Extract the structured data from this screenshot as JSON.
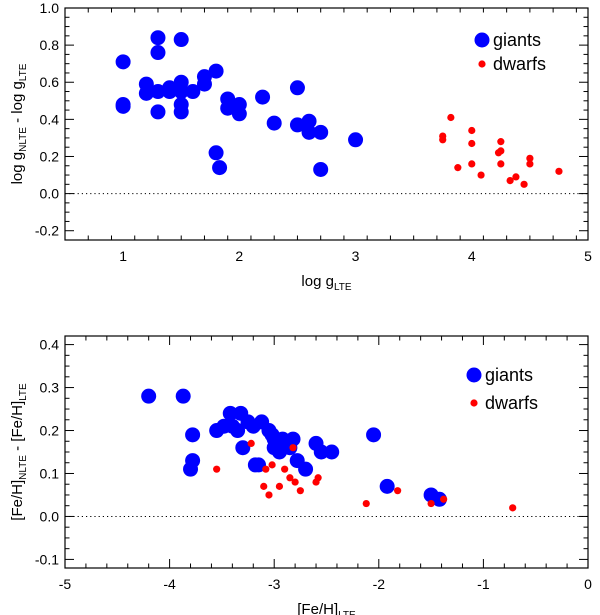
{
  "colors": {
    "giants": "#0000ff",
    "dwarfs": "#ff0000",
    "axis": "#000000"
  },
  "chart_data": [
    {
      "type": "scatter",
      "xlabel": "log g",
      "xlabel_sub": "LTE",
      "ylabel_parts": [
        "log g",
        "NLTE",
        " - log g",
        "LTE"
      ],
      "xlim": [
        0.5,
        5
      ],
      "ylim": [
        -0.25,
        1.0
      ],
      "xticks": [
        1,
        2,
        3,
        4,
        5
      ],
      "xtick_labels": [
        "1",
        "2",
        "3",
        "4",
        "5"
      ],
      "yticks": [
        -0.2,
        0.0,
        0.2,
        0.4,
        0.6,
        0.8,
        1.0
      ],
      "ytick_labels": [
        "-0.2",
        "0.0",
        "0.2",
        "0.4",
        "0.6",
        "0.8",
        "1.0"
      ],
      "zero_line": true,
      "legend": "top-right",
      "series": [
        {
          "name": "giants",
          "marker": "large-circle",
          "points": [
            [
              1.0,
              0.71
            ],
            [
              1.0,
              0.48
            ],
            [
              1.0,
              0.47
            ],
            [
              1.2,
              0.59
            ],
            [
              1.2,
              0.54
            ],
            [
              1.3,
              0.84
            ],
            [
              1.3,
              0.76
            ],
            [
              1.3,
              0.55
            ],
            [
              1.3,
              0.44
            ],
            [
              1.4,
              0.57
            ],
            [
              1.4,
              0.55
            ],
            [
              1.5,
              0.83
            ],
            [
              1.5,
              0.6
            ],
            [
              1.5,
              0.55
            ],
            [
              1.5,
              0.48
            ],
            [
              1.5,
              0.44
            ],
            [
              1.6,
              0.55
            ],
            [
              1.7,
              0.63
            ],
            [
              1.7,
              0.59
            ],
            [
              1.8,
              0.66
            ],
            [
              1.8,
              0.22
            ],
            [
              1.83,
              0.14
            ],
            [
              1.9,
              0.51
            ],
            [
              1.9,
              0.46
            ],
            [
              2.0,
              0.48
            ],
            [
              2.0,
              0.43
            ],
            [
              2.2,
              0.52
            ],
            [
              2.3,
              0.38
            ],
            [
              2.5,
              0.57
            ],
            [
              2.5,
              0.37
            ],
            [
              2.6,
              0.39
            ],
            [
              2.6,
              0.33
            ],
            [
              2.7,
              0.33
            ],
            [
              2.7,
              0.13
            ],
            [
              3.0,
              0.29
            ]
          ]
        },
        {
          "name": "dwarfs",
          "marker": "small-circle",
          "points": [
            [
              3.75,
              0.31
            ],
            [
              3.75,
              0.29
            ],
            [
              3.82,
              0.41
            ],
            [
              3.88,
              0.14
            ],
            [
              4.0,
              0.34
            ],
            [
              4.0,
              0.27
            ],
            [
              4.0,
              0.16
            ],
            [
              4.08,
              0.1
            ],
            [
              4.23,
              0.22
            ],
            [
              4.25,
              0.28
            ],
            [
              4.25,
              0.23
            ],
            [
              4.25,
              0.16
            ],
            [
              4.33,
              0.07
            ],
            [
              4.38,
              0.09
            ],
            [
              4.45,
              0.05
            ],
            [
              4.5,
              0.19
            ],
            [
              4.5,
              0.16
            ],
            [
              4.75,
              0.12
            ]
          ]
        }
      ]
    },
    {
      "type": "scatter",
      "xlabel": "[Fe/H]",
      "xlabel_sub": "LTE",
      "ylabel_parts": [
        "[Fe/H]",
        "NLTE",
        " - [Fe/H]",
        "LTE"
      ],
      "xlim": [
        -5,
        0
      ],
      "ylim": [
        -0.12,
        0.42
      ],
      "xticks": [
        -5,
        -4,
        -3,
        -2,
        -1,
        0
      ],
      "xtick_labels": [
        "-5",
        "-4",
        "-3",
        "-2",
        "-1",
        "0"
      ],
      "yticks": [
        -0.1,
        0.0,
        0.1,
        0.2,
        0.3,
        0.4
      ],
      "ytick_labels": [
        "-0.1",
        "0.0",
        "0.1",
        "0.2",
        "0.3",
        "0.4"
      ],
      "zero_line": true,
      "legend": "top-right",
      "series": [
        {
          "name": "giants",
          "marker": "large-circle",
          "points": [
            [
              -4.2,
              0.28
            ],
            [
              -3.87,
              0.28
            ],
            [
              -3.8,
              0.11
            ],
            [
              -3.78,
              0.19
            ],
            [
              -3.78,
              0.13
            ],
            [
              -3.55,
              0.2
            ],
            [
              -3.48,
              0.21
            ],
            [
              -3.42,
              0.24
            ],
            [
              -3.4,
              0.21
            ],
            [
              -3.35,
              0.2
            ],
            [
              -3.32,
              0.24
            ],
            [
              -3.3,
              0.16
            ],
            [
              -3.25,
              0.22
            ],
            [
              -3.2,
              0.21
            ],
            [
              -3.18,
              0.12
            ],
            [
              -3.15,
              0.12
            ],
            [
              -3.12,
              0.22
            ],
            [
              -3.05,
              0.2
            ],
            [
              -3.02,
              0.19
            ],
            [
              -3.0,
              0.18
            ],
            [
              -3.0,
              0.16
            ],
            [
              -2.98,
              0.17
            ],
            [
              -2.95,
              0.15
            ],
            [
              -2.92,
              0.18
            ],
            [
              -2.88,
              0.17
            ],
            [
              -2.85,
              0.16
            ],
            [
              -2.82,
              0.18
            ],
            [
              -2.78,
              0.13
            ],
            [
              -2.7,
              0.11
            ],
            [
              -2.6,
              0.17
            ],
            [
              -2.55,
              0.15
            ],
            [
              -2.45,
              0.15
            ],
            [
              -2.05,
              0.19
            ],
            [
              -1.92,
              0.07
            ],
            [
              -1.5,
              0.05
            ],
            [
              -1.42,
              0.04
            ]
          ]
        },
        {
          "name": "dwarfs",
          "marker": "small-circle",
          "points": [
            [
              -3.55,
              0.11
            ],
            [
              -3.22,
              0.17
            ],
            [
              -3.1,
              0.07
            ],
            [
              -3.08,
              0.11
            ],
            [
              -3.05,
              0.05
            ],
            [
              -3.02,
              0.12
            ],
            [
              -2.95,
              0.07
            ],
            [
              -2.9,
              0.11
            ],
            [
              -2.85,
              0.09
            ],
            [
              -2.82,
              0.16
            ],
            [
              -2.8,
              0.08
            ],
            [
              -2.75,
              0.06
            ],
            [
              -2.6,
              0.08
            ],
            [
              -2.58,
              0.09
            ],
            [
              -2.12,
              0.03
            ],
            [
              -1.82,
              0.06
            ],
            [
              -1.5,
              0.03
            ],
            [
              -1.38,
              0.04
            ],
            [
              -0.72,
              0.02
            ]
          ]
        }
      ]
    }
  ]
}
